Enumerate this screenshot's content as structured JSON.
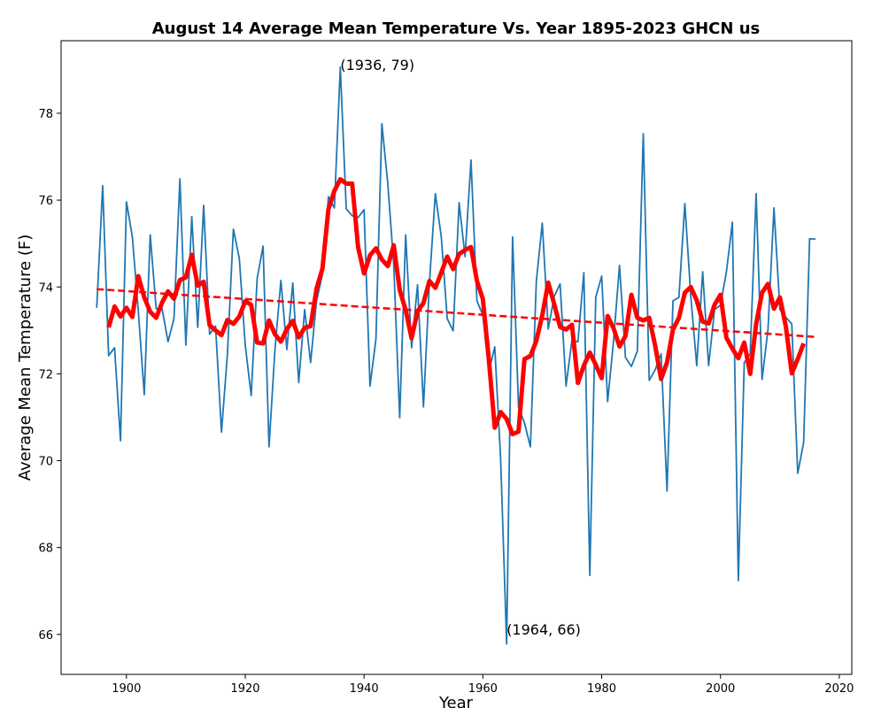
{
  "chart_data": {
    "type": "line",
    "title": "August 14 Average Mean Temperature Vs. Year 1895-2023 GHCN us",
    "x_label": "Year",
    "y_label": "Average Mean Temperature (F)",
    "x": [
      1895,
      1896,
      1897,
      1898,
      1899,
      1900,
      1901,
      1902,
      1903,
      1904,
      1905,
      1906,
      1907,
      1908,
      1909,
      1910,
      1911,
      1912,
      1913,
      1914,
      1915,
      1916,
      1917,
      1918,
      1919,
      1920,
      1921,
      1922,
      1923,
      1924,
      1925,
      1926,
      1927,
      1928,
      1929,
      1930,
      1931,
      1932,
      1933,
      1934,
      1935,
      1936,
      1937,
      1938,
      1939,
      1940,
      1941,
      1942,
      1943,
      1944,
      1945,
      1946,
      1947,
      1948,
      1949,
      1950,
      1951,
      1952,
      1953,
      1954,
      1955,
      1956,
      1957,
      1958,
      1959,
      1960,
      1961,
      1962,
      1963,
      1964,
      1965,
      1966,
      1967,
      1968,
      1969,
      1970,
      1971,
      1972,
      1973,
      1974,
      1975,
      1976,
      1977,
      1978,
      1979,
      1980,
      1981,
      1982,
      1983,
      1984,
      1985,
      1986,
      1987,
      1988,
      1989,
      1990,
      1991,
      1992,
      1993,
      1994,
      1995,
      1996,
      1997,
      1998,
      1999,
      2000,
      2001,
      2002,
      2003,
      2004,
      2005,
      2006,
      2007,
      2008,
      2009,
      2010,
      2011,
      2012,
      2013,
      2014,
      2015,
      2016
    ],
    "series": [
      {
        "color": "#1f77b4",
        "width": 1.8,
        "values": [
          73.52,
          76.33,
          72.42,
          72.6,
          70.46,
          75.96,
          75.15,
          73.44,
          71.52,
          75.2,
          73.5,
          73.5,
          72.74,
          73.27,
          76.49,
          72.66,
          75.62,
          73.07,
          75.88,
          72.91,
          73.1,
          70.66,
          72.46,
          75.33,
          74.66,
          72.66,
          71.5,
          74.19,
          74.94,
          70.32,
          72.56,
          74.15,
          72.56,
          74.09,
          71.8,
          73.48,
          72.26,
          73.68,
          74.29,
          76.08,
          75.82,
          79.06,
          75.8,
          75.64,
          75.6,
          75.78,
          71.72,
          72.8,
          77.76,
          76.37,
          74.5,
          70.99,
          75.2,
          72.6,
          74.05,
          71.24,
          74.09,
          76.15,
          75.15,
          73.27,
          72.99,
          75.94,
          74.7,
          76.92,
          73.68,
          73.35,
          72.05,
          72.62,
          70.01,
          65.78,
          75.15,
          71.24,
          70.87,
          70.32,
          74.13,
          75.47,
          73.03,
          73.78,
          74.07,
          71.72,
          72.78,
          72.74,
          74.33,
          67.36,
          73.76,
          74.25,
          71.36,
          72.76,
          74.5,
          72.38,
          72.17,
          72.52,
          77.53,
          71.85,
          72.09,
          72.46,
          69.3,
          73.68,
          73.76,
          75.92,
          73.78,
          72.19,
          74.35,
          72.19,
          73.48,
          73.58,
          74.35,
          75.49,
          67.24,
          72.26,
          72.46,
          76.15,
          71.87,
          73.03,
          75.82,
          73.48,
          73.3,
          73.15,
          69.71,
          70.42,
          75.11,
          75.1
        ]
      },
      {
        "color": "#ff0000",
        "width": 5,
        "values": [
          null,
          null,
          73.07,
          73.55,
          73.32,
          73.52,
          73.31,
          74.25,
          73.76,
          73.43,
          73.29,
          73.64,
          73.9,
          73.73,
          74.16,
          74.22,
          74.74,
          74.03,
          74.12,
          73.12,
          73.0,
          72.89,
          73.24,
          73.15,
          73.32,
          73.67,
          73.59,
          72.72,
          72.7,
          73.23,
          72.91,
          72.74,
          73.03,
          73.22,
          72.84,
          73.06,
          73.1,
          73.96,
          74.43,
          75.79,
          76.21,
          76.48,
          76.38,
          76.38,
          74.91,
          74.31,
          74.73,
          74.89,
          74.63,
          74.48,
          74.96,
          73.93,
          73.47,
          72.82,
          73.44,
          73.63,
          74.14,
          73.98,
          74.33,
          74.7,
          74.41,
          74.76,
          74.85,
          74.92,
          74.14,
          73.72,
          72.34,
          70.76,
          71.12,
          70.96,
          70.61,
          70.67,
          72.34,
          72.41,
          72.76,
          73.35,
          74.1,
          73.61,
          73.08,
          73.02,
          73.13,
          71.79,
          72.19,
          72.49,
          72.21,
          71.9,
          73.33,
          73.05,
          72.63,
          72.87,
          73.82,
          73.29,
          73.23,
          73.29,
          72.65,
          71.88,
          72.26,
          73.02,
          73.29,
          73.87,
          74.0,
          73.69,
          73.2,
          73.16,
          73.59,
          73.82,
          72.83,
          72.58,
          72.36,
          72.72,
          72.0,
          73.15,
          73.87,
          74.07,
          73.5,
          73.76,
          73.09,
          72.01,
          72.34,
          72.7,
          null,
          null
        ]
      },
      {
        "color": "#ff0000",
        "width": 2.5,
        "dashed": true,
        "x": [
          1895,
          2016
        ],
        "values": [
          73.95,
          72.85
        ]
      }
    ],
    "annotations": [
      {
        "text": "(1936, 79)",
        "x": 1936,
        "y": 79
      },
      {
        "text": "(1964, 66)",
        "x": 1964,
        "y": 66
      }
    ],
    "xlim": [
      1889,
      2022.1
    ],
    "ylim": [
      65.08,
      79.67
    ],
    "xticks": [
      1900,
      1920,
      1940,
      1960,
      1980,
      2000,
      2020
    ],
    "yticks": [
      66,
      68,
      70,
      72,
      74,
      76,
      78
    ]
  }
}
